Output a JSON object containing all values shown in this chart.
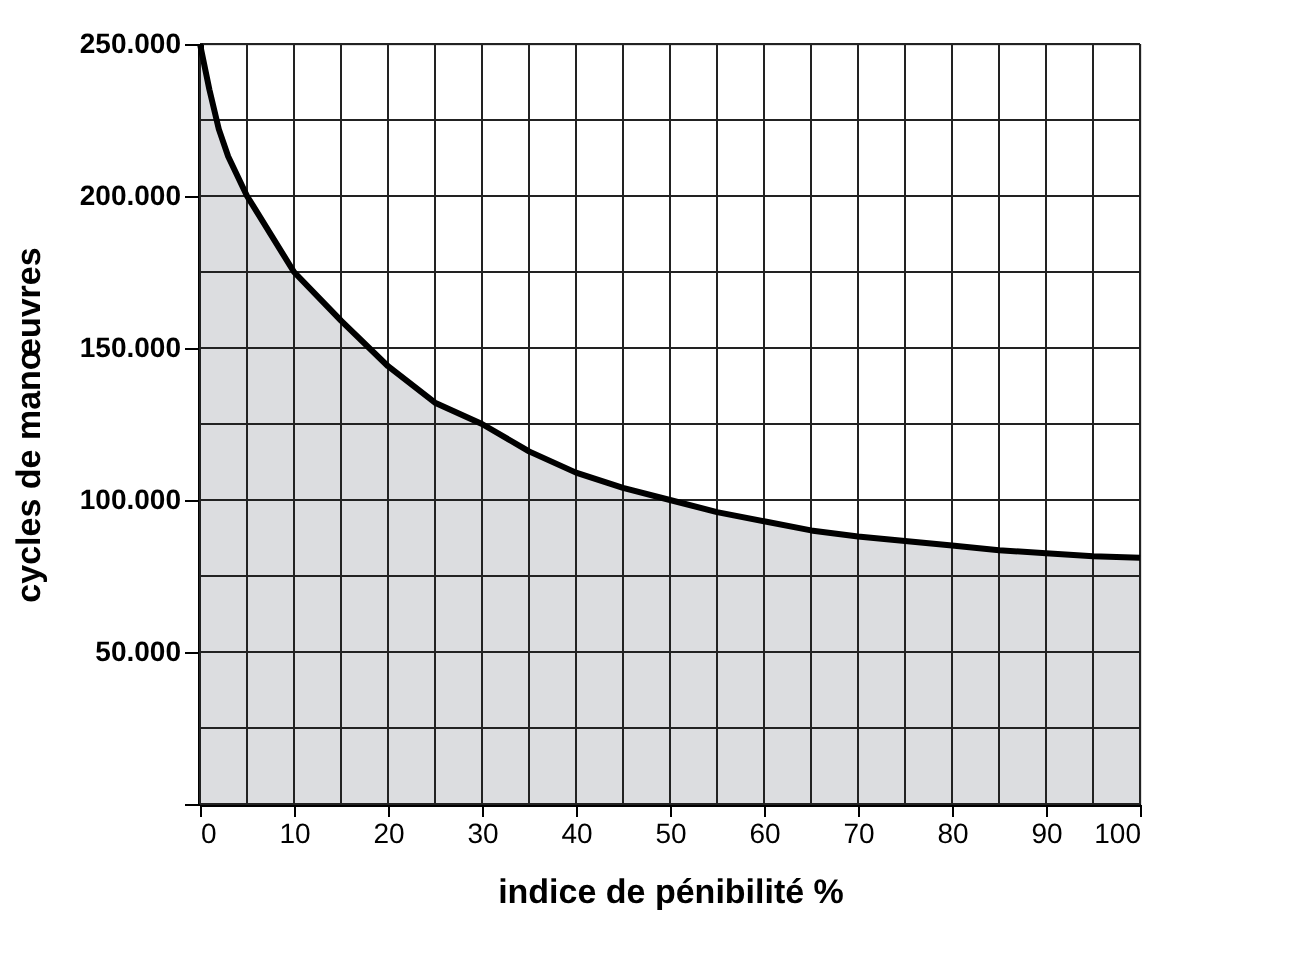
{
  "chart_data": {
    "type": "area",
    "xlabel": "indice de pénibilité %",
    "ylabel": "cycles de manœuvres",
    "x": [
      0,
      1,
      2,
      3,
      5,
      10,
      15,
      20,
      25,
      30,
      35,
      40,
      45,
      50,
      55,
      60,
      65,
      70,
      75,
      80,
      85,
      90,
      95,
      100
    ],
    "series": [
      {
        "color": "#dcdde0",
        "values": [
          250000,
          235000,
          222000,
          213000,
          200000,
          175000,
          159000,
          144000,
          132000,
          125000,
          116000,
          109000,
          104000,
          100000,
          96000,
          93000,
          90000,
          88000,
          86500,
          85000,
          83500,
          82500,
          81500,
          81000
        ]
      }
    ],
    "xlim": [
      0,
      100
    ],
    "xticks": [
      0,
      {
        "value": 5,
        "label": null
      },
      10,
      {
        "value": 15,
        "label": null
      },
      20,
      {
        "value": 25,
        "label": null
      },
      30,
      {
        "value": 35,
        "label": null
      },
      40,
      {
        "value": 45,
        "label": null
      },
      50,
      {
        "value": 55,
        "label": null
      },
      60,
      {
        "value": 65,
        "label": null
      },
      70,
      {
        "value": 75,
        "label": null
      },
      80,
      {
        "value": 85,
        "label": null
      },
      90,
      {
        "value": 95,
        "label": null
      },
      100
    ],
    "ylim": [
      0,
      250000
    ],
    "yticks": [
      {
        "value": 0,
        "label": null
      },
      {
        "value": 25000,
        "label": null
      },
      {
        "value": 50000,
        "label": "50.000"
      },
      {
        "value": 75000,
        "label": null
      },
      {
        "value": 100000,
        "label": "100.000"
      },
      {
        "value": 125000,
        "label": null
      },
      {
        "value": 150000,
        "label": "150.000"
      },
      {
        "value": 175000,
        "label": null
      },
      {
        "value": 200000,
        "label": "200.000"
      },
      {
        "value": 225000,
        "label": null
      },
      {
        "value": 250000,
        "label": "250.000"
      }
    ],
    "grid": true,
    "line_style": "solid",
    "marker": "none",
    "legend": false
  }
}
